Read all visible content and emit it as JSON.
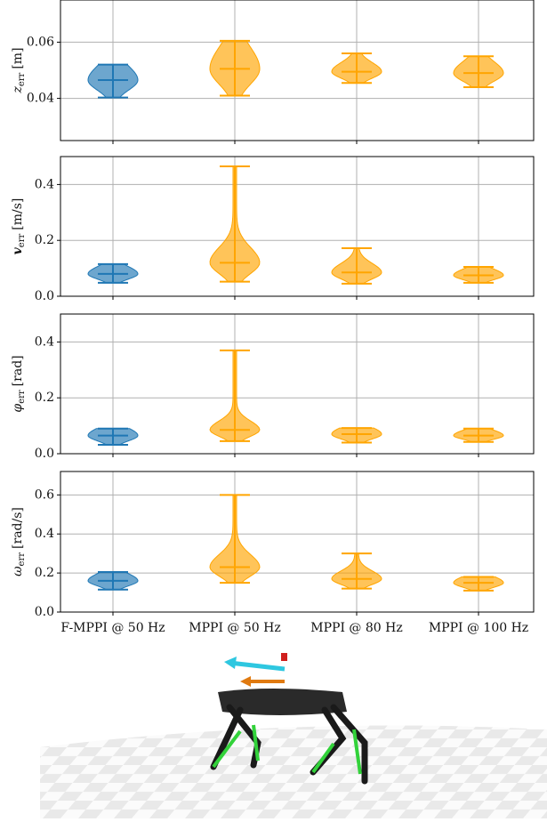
{
  "chart_data": [
    {
      "type": "violin",
      "ylabel": {
        "symbol": "z",
        "sub": "err",
        "unit": "[m]"
      },
      "colors": [
        "#1f77b4",
        "#ffa500",
        "#ffa500",
        "#ffa500"
      ],
      "mins": [
        0.0403,
        0.041,
        0.0455,
        0.044
      ],
      "medians": [
        0.0465,
        0.0505,
        0.0495,
        0.049
      ],
      "maxs": [
        0.052,
        0.0605,
        0.056,
        0.055
      ],
      "ylim": [
        0.025,
        0.075
      ],
      "yticks": [
        0.04,
        0.06
      ],
      "grid": true
    },
    {
      "type": "violin",
      "ylabel": {
        "symbol": "v",
        "sub": "err",
        "unit": "[m/s]"
      },
      "colors": [
        "#1f77b4",
        "#ffa500",
        "#ffa500",
        "#ffa500"
      ],
      "mins": [
        0.048,
        0.052,
        0.045,
        0.048
      ],
      "medians": [
        0.08,
        0.12,
        0.085,
        0.075
      ],
      "maxs": [
        0.115,
        0.465,
        0.172,
        0.105
      ],
      "ylim": [
        0,
        0.5
      ],
      "yticks": [
        {
          "value": 0,
          "label": "0.0"
        },
        0.2,
        0.4
      ],
      "grid": true
    },
    {
      "type": "violin",
      "ylabel": {
        "symbol": "φ",
        "sub": "err",
        "unit": "[rad]"
      },
      "colors": [
        "#1f77b4",
        "#ffa500",
        "#ffa500",
        "#ffa500"
      ],
      "mins": [
        0.032,
        0.045,
        0.04,
        0.042
      ],
      "medians": [
        0.065,
        0.085,
        0.07,
        0.065
      ],
      "maxs": [
        0.09,
        0.37,
        0.092,
        0.09
      ],
      "ylim": [
        0,
        0.5
      ],
      "yticks": [
        {
          "value": 0,
          "label": "0.0"
        },
        0.2,
        0.4
      ],
      "grid": true
    },
    {
      "type": "violin",
      "ylabel": {
        "symbol": "ω",
        "sub": "err",
        "unit": "[rad/s]"
      },
      "colors": [
        "#1f77b4",
        "#ffa500",
        "#ffa500",
        "#ffa500"
      ],
      "categories": [
        "F-MPPI @ 50 Hz",
        "MPPI @ 50 Hz",
        "MPPI @ 80 Hz",
        "MPPI @ 100 Hz"
      ],
      "mins": [
        0.115,
        0.15,
        0.12,
        0.11
      ],
      "medians": [
        0.16,
        0.23,
        0.17,
        0.15
      ],
      "maxs": [
        0.205,
        0.6,
        0.3,
        0.18
      ],
      "ylim": [
        0,
        0.72
      ],
      "yticks": [
        {
          "value": 0,
          "label": "0.0"
        },
        0.2,
        0.4,
        0.6
      ],
      "grid": true
    }
  ]
}
